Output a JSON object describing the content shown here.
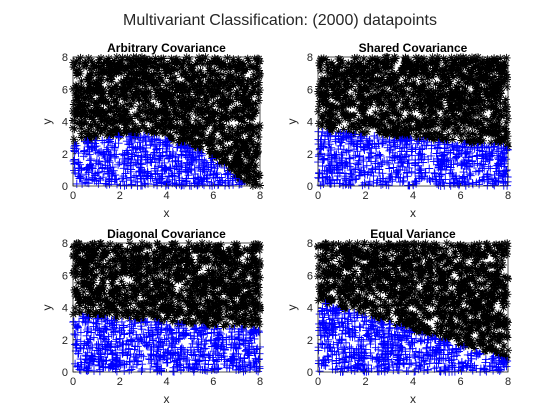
{
  "figure_title": "Multivariant Classification: (2000) datapoints",
  "colors": {
    "class_a": "#000000",
    "class_b": "#0000ff",
    "axes": "#262626",
    "background": "#ffffff"
  },
  "chart_data": [
    {
      "type": "scatter",
      "title": "Arbitrary Covariance",
      "xlabel": "x",
      "ylabel": "y",
      "xlim": [
        0,
        8
      ],
      "ylim": [
        0,
        8
      ],
      "xticks": [
        0,
        2,
        4,
        6,
        8
      ],
      "yticks": [
        0,
        2,
        4,
        6,
        8
      ],
      "grid": false,
      "marker": "+ / *",
      "point_count": 2000,
      "series": [
        {
          "color": "#0000ff",
          "region": "below boundary"
        },
        {
          "color": "#000000",
          "region": "above boundary"
        }
      ],
      "decision_boundary": {
        "x": [
          0,
          1,
          2,
          3,
          4,
          5,
          6,
          6.5,
          7,
          7.4
        ],
        "y": [
          2.6,
          2.9,
          3.1,
          3.1,
          2.9,
          2.4,
          1.7,
          1.1,
          0.4,
          0
        ]
      }
    },
    {
      "type": "scatter",
      "title": "Shared Covariance",
      "xlabel": "x",
      "ylabel": "y",
      "xlim": [
        0,
        8
      ],
      "ylim": [
        0,
        8
      ],
      "xticks": [
        0,
        2,
        4,
        6,
        8
      ],
      "yticks": [
        0,
        2,
        4,
        6,
        8
      ],
      "grid": false,
      "marker": "+ / *",
      "point_count": 2000,
      "series": [
        {
          "color": "#0000ff",
          "region": "below boundary"
        },
        {
          "color": "#000000",
          "region": "above boundary"
        }
      ],
      "decision_boundary": {
        "x": [
          0,
          8
        ],
        "y": [
          3.4,
          2.4
        ]
      }
    },
    {
      "type": "scatter",
      "title": "Diagonal Covariance",
      "xlabel": "x",
      "ylabel": "y",
      "xlim": [
        0,
        8
      ],
      "ylim": [
        0,
        8
      ],
      "xticks": [
        0,
        2,
        4,
        6,
        8
      ],
      "yticks": [
        0,
        2,
        4,
        6,
        8
      ],
      "grid": false,
      "marker": "+ / *",
      "point_count": 2000,
      "series": [
        {
          "color": "#0000ff",
          "region": "below boundary"
        },
        {
          "color": "#000000",
          "region": "above boundary"
        }
      ],
      "decision_boundary": {
        "x": [
          0,
          8
        ],
        "y": [
          3.5,
          2.6
        ]
      }
    },
    {
      "type": "scatter",
      "title": "Equal Variance",
      "xlabel": "x",
      "ylabel": "y",
      "xlim": [
        0,
        8
      ],
      "ylim": [
        0,
        8
      ],
      "xticks": [
        0,
        2,
        4,
        6,
        8
      ],
      "yticks": [
        0,
        2,
        4,
        6,
        8
      ],
      "grid": false,
      "marker": "+ / *",
      "point_count": 2000,
      "series": [
        {
          "color": "#0000ff",
          "region": "below boundary"
        },
        {
          "color": "#000000",
          "region": "above boundary"
        }
      ],
      "decision_boundary": {
        "x": [
          0,
          8
        ],
        "y": [
          4.4,
          0.7
        ]
      }
    }
  ]
}
